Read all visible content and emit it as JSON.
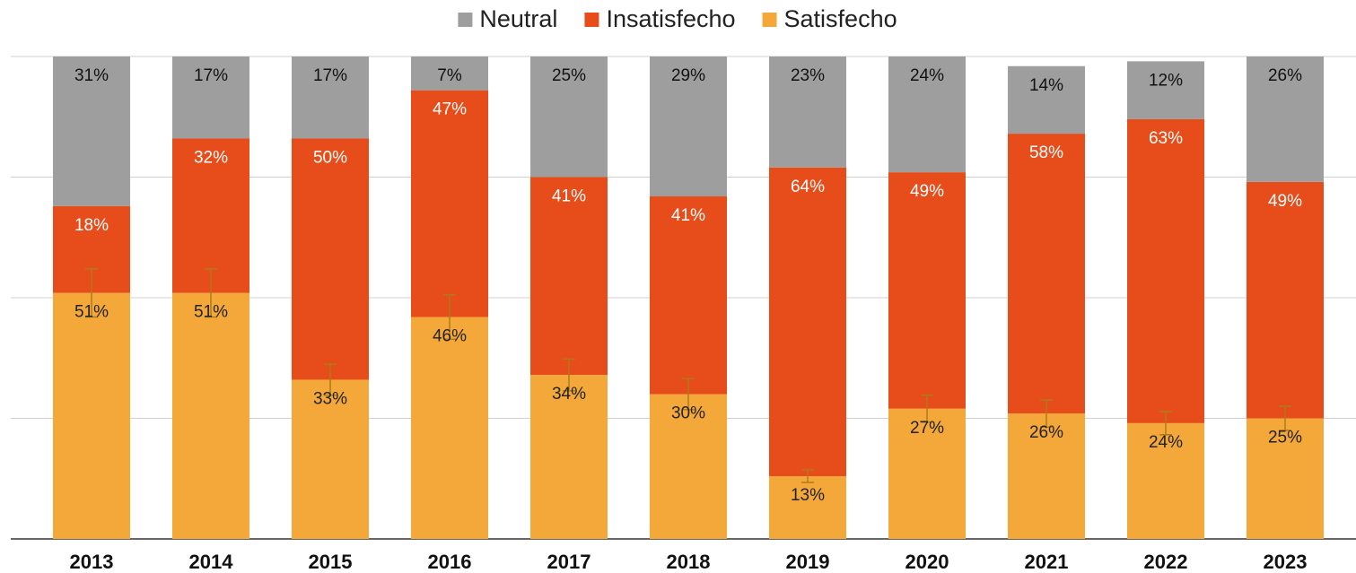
{
  "chart_data": {
    "type": "stacked_bar",
    "categories": [
      "2013",
      "2014",
      "2015",
      "2016",
      "2017",
      "2018",
      "2019",
      "2020",
      "2021",
      "2022",
      "2023"
    ],
    "series": [
      {
        "name": "Satisfecho",
        "color": "#f4a83a",
        "values": [
          51,
          51,
          33,
          46,
          34,
          30,
          13,
          27,
          26,
          24,
          25
        ],
        "value_labels": [
          "51%",
          "51%",
          "33%",
          "46%",
          "34%",
          "30%",
          "13%",
          "27%",
          "26%",
          "24%",
          "25%"
        ],
        "error": [
          5,
          5,
          3.2,
          4.6,
          3.3,
          3.2,
          1.3,
          2.8,
          2.8,
          2.4,
          2.5
        ]
      },
      {
        "name": "Insatisfecho",
        "color": "#e64d1a",
        "values": [
          18,
          32,
          50,
          47,
          41,
          41,
          64,
          49,
          58,
          63,
          49
        ],
        "value_labels": [
          "18%",
          "32%",
          "50%",
          "47%",
          "41%",
          "41%",
          "64%",
          "49%",
          "58%",
          "63%",
          "49%"
        ]
      },
      {
        "name": "Neutral",
        "color": "#9e9e9e",
        "values": [
          31,
          17,
          17,
          7,
          25,
          29,
          23,
          24,
          14,
          12,
          26
        ],
        "value_labels": [
          "31%",
          "17%",
          "17%",
          "7%",
          "25%",
          "29%",
          "23%",
          "24%",
          "14%",
          "12%",
          "26%"
        ]
      }
    ],
    "ylim": [
      0,
      100
    ],
    "yticks": [
      0,
      25,
      50,
      75,
      100
    ],
    "grid": true,
    "legend": "top"
  }
}
